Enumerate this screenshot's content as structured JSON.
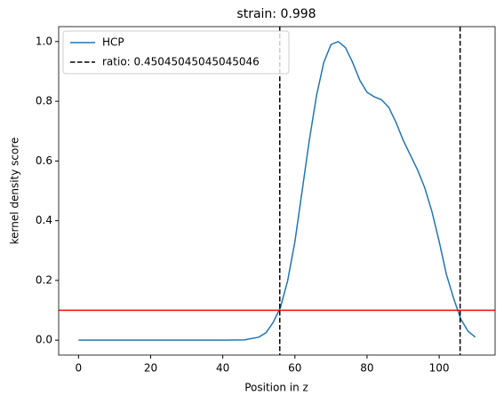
{
  "chart_data": {
    "type": "line",
    "title": "strain: 0.998",
    "x_label": "Position in z",
    "y_label": "kernel density score",
    "x": [
      0,
      10,
      20,
      30,
      40,
      46,
      50,
      52,
      54,
      56,
      58,
      60,
      62,
      64,
      66,
      68,
      70,
      72,
      74,
      76,
      78,
      80,
      82,
      84,
      86,
      88,
      90,
      92,
      94,
      96,
      98,
      100,
      102,
      104,
      106,
      108,
      110
    ],
    "series": [
      {
        "name": "HCP",
        "color": "#1f77b4",
        "values": [
          0,
          0,
          0,
          0,
          0,
          0.001,
          0.01,
          0.025,
          0.06,
          0.11,
          0.2,
          0.33,
          0.5,
          0.67,
          0.82,
          0.93,
          0.99,
          1.0,
          0.98,
          0.93,
          0.87,
          0.83,
          0.815,
          0.805,
          0.78,
          0.73,
          0.67,
          0.62,
          0.57,
          0.51,
          0.43,
          0.33,
          0.22,
          0.14,
          0.07,
          0.03,
          0.01
        ]
      }
    ],
    "vlines": {
      "name": "ratio: 0.45045045045045046",
      "color": "#000000",
      "x": [
        55.8,
        105.8
      ]
    },
    "hline": {
      "y": 0.1,
      "color": "#ff0000"
    },
    "xlim": [
      -5.5,
      115.5
    ],
    "xticks": [
      0,
      20,
      40,
      60,
      80,
      100
    ],
    "ylim": [
      -0.05,
      1.05
    ],
    "yticks": [
      {
        "value": 0,
        "label": "0.0"
      },
      {
        "value": 0.2,
        "label": "0.2"
      },
      {
        "value": 0.4,
        "label": "0.4"
      },
      {
        "value": 0.6,
        "label": "0.6"
      },
      {
        "value": 0.8,
        "label": "0.8"
      },
      {
        "value": 1,
        "label": "1.0"
      }
    ],
    "legend": "upper left",
    "grid": false
  }
}
